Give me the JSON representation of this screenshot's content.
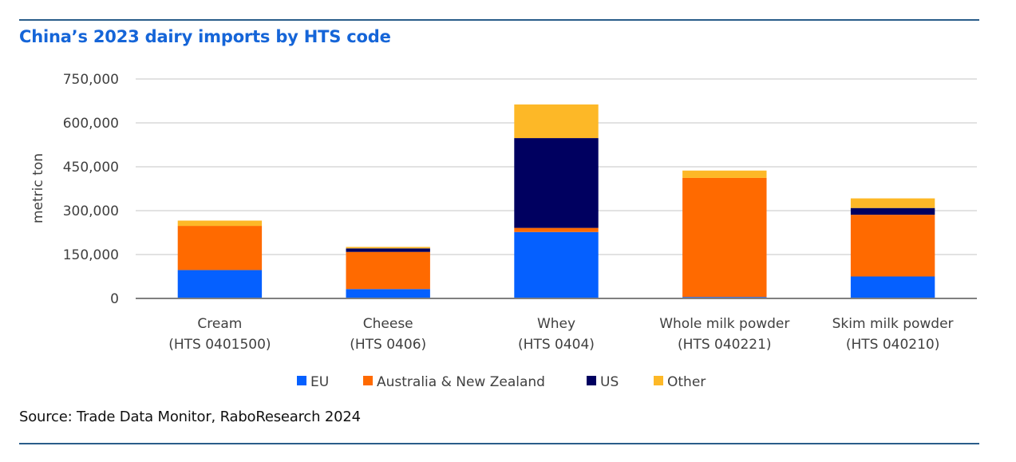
{
  "chart_data": {
    "type": "bar",
    "stacked": true,
    "title": "China’s 2023 dairy imports by HTS code",
    "xlabel": "",
    "ylabel": "metric ton",
    "ylim": [
      0,
      750000
    ],
    "yticks": [
      0,
      150000,
      300000,
      450000,
      600000,
      750000
    ],
    "ytick_labels": [
      "0",
      "150,000",
      "300,000",
      "450,000",
      "600,000",
      "750,000"
    ],
    "grid": true,
    "legend_position": "bottom",
    "categories": [
      [
        "Cream",
        "(HTS 0401500)"
      ],
      [
        "Cheese",
        "(HTS 0406)"
      ],
      [
        "Whey",
        "(HTS 0404)"
      ],
      [
        "Whole milk powder",
        "(HTS 040221)"
      ],
      [
        "Skim milk powder",
        "(HTS 040210)"
      ]
    ],
    "series": [
      {
        "name": "EU",
        "color": "#0560ff",
        "values": [
          97000,
          32000,
          227000,
          5000,
          75000
        ]
      },
      {
        "name": "Australia & New Zealand",
        "color": "#ff6a00",
        "values": [
          151000,
          127000,
          14000,
          407000,
          211000
        ]
      },
      {
        "name": "US",
        "color": "#000060",
        "values": [
          0,
          12000,
          307000,
          0,
          23000
        ]
      },
      {
        "name": "Other",
        "color": "#fdb827",
        "values": [
          18000,
          5000,
          115000,
          25000,
          33000
        ]
      }
    ]
  },
  "source": "Source: Trade Data Monitor, RaboResearch 2024"
}
